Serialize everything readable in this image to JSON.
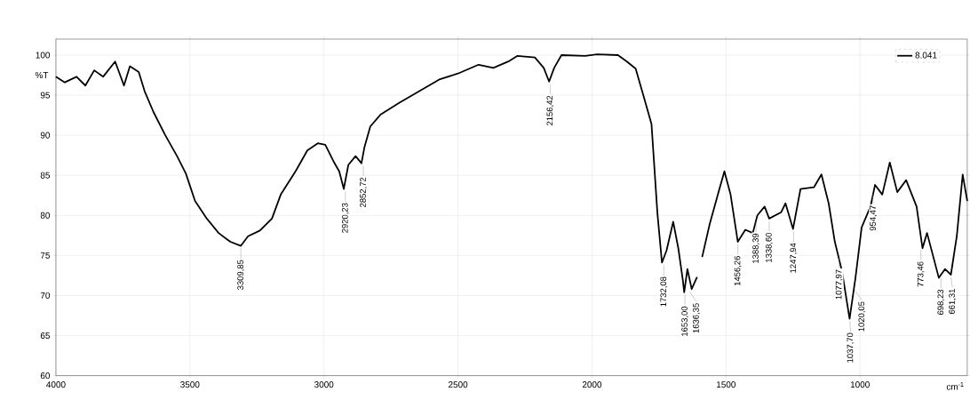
{
  "chart_data": {
    "type": "line",
    "xlabel": "cm$^{-1}$",
    "ylabel": "%T",
    "xlim": [
      4000,
      600
    ],
    "ylim": [
      60,
      102
    ],
    "xticks": [
      4000,
      3500,
      3000,
      2500,
      2000,
      1500,
      1000
    ],
    "yticks": [
      60,
      65,
      70,
      75,
      80,
      85,
      90,
      95,
      100
    ],
    "grid": true,
    "legend": "top right",
    "marker": "none",
    "line_style": "solid",
    "x": [
      4000,
      3967,
      3923,
      3890,
      3857,
      3824,
      3779,
      3746,
      3724,
      3691,
      3669,
      3636,
      3592,
      3548,
      3515,
      3481,
      3437,
      3393,
      3349,
      3310,
      3283,
      3239,
      3194,
      3161,
      3106,
      3062,
      3023,
      2995,
      2962,
      2943,
      2926,
      2909,
      2882,
      2860,
      2849,
      2827,
      2788,
      2721,
      2644,
      2567,
      2500,
      2423,
      2368,
      2312,
      2279,
      2213,
      2180,
      2160,
      2141,
      2114,
      2025,
      1981,
      1903,
      1870,
      1837,
      1806,
      1778,
      1756,
      1739,
      1722,
      1697,
      1678,
      1661,
      1656,
      1644,
      1628,
      1608,
      1600,
      1589,
      1561,
      1528,
      1506,
      1483,
      1456,
      1428,
      1400,
      1383,
      1356,
      1339,
      1294,
      1278,
      1250,
      1222,
      1172,
      1144,
      1117,
      1094,
      1067,
      1039,
      1017,
      994,
      961,
      944,
      917,
      889,
      861,
      828,
      789,
      767,
      750,
      706,
      683,
      661,
      639,
      617,
      600
    ],
    "series": [
      {
        "name": "8.041",
        "color": "#000000",
        "values": [
          97.3,
          96.6,
          97.3,
          96.2,
          98.1,
          97.3,
          99.2,
          96.2,
          98.6,
          97.9,
          95.5,
          92.9,
          90,
          87.4,
          85.2,
          81.8,
          79.6,
          77.8,
          76.7,
          76.2,
          77.4,
          78.1,
          79.6,
          82.6,
          85.5,
          88.1,
          89.0,
          88.8,
          86.6,
          85.5,
          83.3,
          86.3,
          87.4,
          86.5,
          88.5,
          91.1,
          92.6,
          94.0,
          95.5,
          97.0,
          97.7,
          98.8,
          98.4,
          99.2,
          99.9,
          99.7,
          98.4,
          96.7,
          98.4,
          100,
          99.9,
          100.1,
          100,
          99.2,
          98.3,
          94.7,
          91.4,
          80.3,
          74.1,
          75.6,
          79.2,
          75.9,
          71.9,
          70.4,
          73.3,
          70.8,
          72.3,
          null,
          74.8,
          78.9,
          82.9,
          85.5,
          82.6,
          76.7,
          78.2,
          77.8,
          80.0,
          81.1,
          79.6,
          80.4,
          81.5,
          78.3,
          83.3,
          83.5,
          85.1,
          81.5,
          76.7,
          73.0,
          67.1,
          72.2,
          78.5,
          81.1,
          83.8,
          82.6,
          86.6,
          82.9,
          84.4,
          81.1,
          75.9,
          77.8,
          72.2,
          73.3,
          72.6,
          77.4,
          85.1,
          81.8
        ]
      }
    ],
    "annotations": [
      {
        "text": "3309,85",
        "x": 3310,
        "y": 76.2
      },
      {
        "text": "2920,23",
        "x": 2920,
        "y": 83.3
      },
      {
        "text": "2852,72",
        "x": 2853,
        "y": 86.5
      },
      {
        "text": "2156,42",
        "x": 2156,
        "y": 96.7
      },
      {
        "text": "1732,08",
        "x": 1732,
        "y": 74.1
      },
      {
        "text": "1653,00",
        "x": 1653,
        "y": 70.4
      },
      {
        "text": "1636,35",
        "x": 1636,
        "y": 70.8
      },
      {
        "text": "1456,26",
        "x": 1456,
        "y": 76.7
      },
      {
        "text": "1388,39",
        "x": 1388,
        "y": 79.5
      },
      {
        "text": "1338,60",
        "x": 1339,
        "y": 79.6
      },
      {
        "text": "1247,94",
        "x": 1248,
        "y": 78.3
      },
      {
        "text": "1077,97",
        "x": 1078,
        "y": 75.0
      },
      {
        "text": "1037,70",
        "x": 1038,
        "y": 67.1
      },
      {
        "text": "1020,05",
        "x": 1020,
        "y": 71.0
      },
      {
        "text": "954,47",
        "x": 954,
        "y": 83.0
      },
      {
        "text": "773,46",
        "x": 773,
        "y": 76.0
      },
      {
        "text": "698,23",
        "x": 698,
        "y": 72.5
      },
      {
        "text": "661,31",
        "x": 661,
        "y": 72.6
      }
    ]
  }
}
